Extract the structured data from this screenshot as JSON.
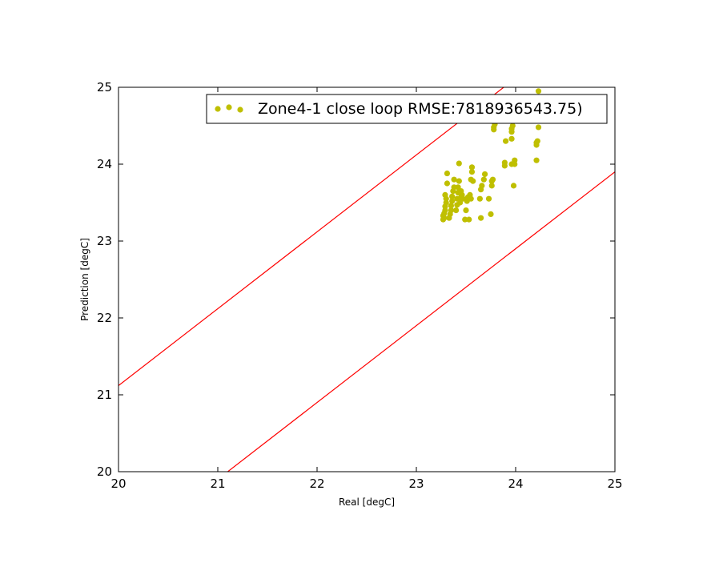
{
  "chart_data": {
    "type": "scatter",
    "title": "",
    "xlabel": "Real [degC]",
    "ylabel": "Prediction [degC]",
    "xlim": [
      20,
      25
    ],
    "ylim": [
      20,
      25
    ],
    "xticks": [
      "20",
      "21",
      "22",
      "23",
      "24",
      "25"
    ],
    "yticks": [
      "20",
      "21",
      "22",
      "23",
      "24",
      "25"
    ],
    "grid": false,
    "legend_position": "top-right",
    "series": [
      {
        "name": "Zone4-1 close loop RMSE:7818936543.75)",
        "color": "#bfbf00",
        "marker": "circle",
        "points": [
          [
            23.27,
            23.28
          ],
          [
            23.28,
            23.3
          ],
          [
            23.27,
            23.33
          ],
          [
            23.28,
            23.36
          ],
          [
            23.29,
            23.4
          ],
          [
            23.29,
            23.45
          ],
          [
            23.3,
            23.5
          ],
          [
            23.3,
            23.55
          ],
          [
            23.29,
            23.6
          ],
          [
            23.31,
            23.75
          ],
          [
            23.31,
            23.88
          ],
          [
            23.33,
            23.3
          ],
          [
            23.34,
            23.35
          ],
          [
            23.35,
            23.4
          ],
          [
            23.35,
            23.46
          ],
          [
            23.36,
            23.52
          ],
          [
            23.36,
            23.58
          ],
          [
            23.37,
            23.65
          ],
          [
            23.38,
            23.7
          ],
          [
            23.38,
            23.8
          ],
          [
            23.4,
            23.4
          ],
          [
            23.41,
            23.47
          ],
          [
            23.41,
            23.55
          ],
          [
            23.42,
            23.63
          ],
          [
            23.42,
            23.7
          ],
          [
            23.43,
            23.78
          ],
          [
            23.43,
            24.01
          ],
          [
            23.44,
            23.5
          ],
          [
            23.45,
            23.57
          ],
          [
            23.45,
            23.65
          ],
          [
            23.46,
            23.6
          ],
          [
            23.47,
            23.55
          ],
          [
            23.49,
            23.28
          ],
          [
            23.5,
            23.4
          ],
          [
            23.51,
            23.52
          ],
          [
            23.52,
            23.57
          ],
          [
            23.53,
            23.28
          ],
          [
            23.54,
            23.6
          ],
          [
            23.55,
            23.55
          ],
          [
            23.55,
            23.8
          ],
          [
            23.56,
            23.9
          ],
          [
            23.56,
            23.96
          ],
          [
            23.57,
            23.78
          ],
          [
            23.64,
            23.55
          ],
          [
            23.65,
            23.3
          ],
          [
            23.65,
            23.67
          ],
          [
            23.66,
            23.72
          ],
          [
            23.68,
            23.8
          ],
          [
            23.69,
            23.87
          ],
          [
            23.73,
            23.55
          ],
          [
            23.75,
            23.35
          ],
          [
            23.76,
            23.72
          ],
          [
            23.76,
            23.78
          ],
          [
            23.77,
            23.8
          ],
          [
            23.78,
            24.45
          ],
          [
            23.78,
            24.48
          ],
          [
            23.79,
            24.52
          ],
          [
            23.79,
            24.55
          ],
          [
            23.89,
            23.98
          ],
          [
            23.89,
            24.02
          ],
          [
            23.9,
            24.3
          ],
          [
            23.96,
            24.0
          ],
          [
            23.96,
            24.33
          ],
          [
            23.96,
            24.42
          ],
          [
            23.96,
            24.46
          ],
          [
            23.97,
            24.5
          ],
          [
            23.98,
            23.72
          ],
          [
            23.99,
            24.0
          ],
          [
            23.99,
            24.05
          ],
          [
            24.21,
            24.05
          ],
          [
            24.21,
            24.25
          ],
          [
            24.21,
            24.28
          ],
          [
            24.22,
            24.3
          ],
          [
            24.23,
            24.48
          ],
          [
            24.23,
            24.95
          ]
        ]
      }
    ],
    "reference_lines": [
      {
        "color": "#ff0000",
        "x": [
          20,
          25
        ],
        "y": [
          21.12,
          26.12
        ]
      },
      {
        "color": "#ff0000",
        "x": [
          20,
          25
        ],
        "y": [
          18.9,
          23.9
        ]
      }
    ]
  }
}
